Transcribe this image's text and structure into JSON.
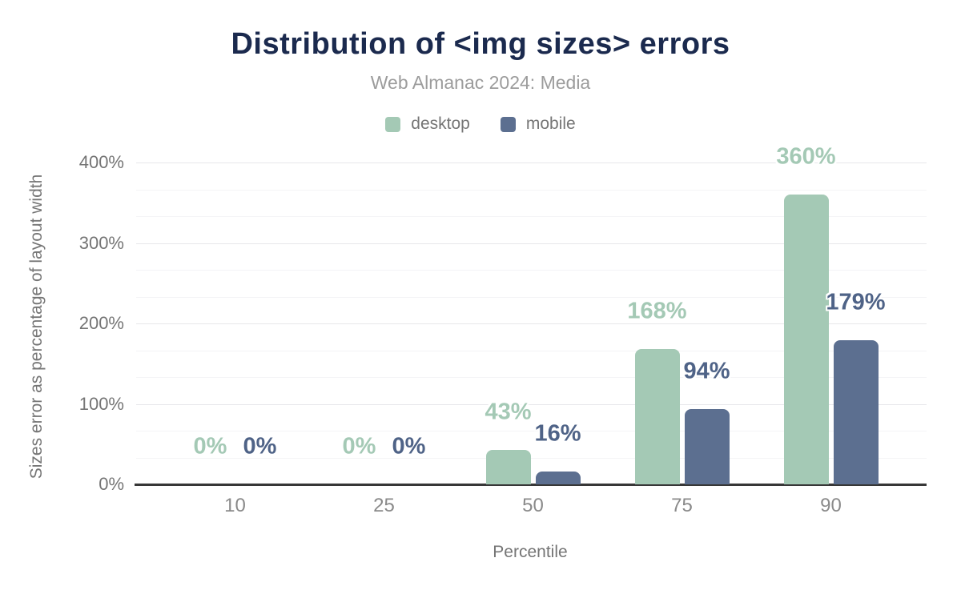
{
  "header": {
    "title": "Distribution of <img sizes> errors",
    "subtitle": "Web Almanac 2024: Media"
  },
  "legend": {
    "items": [
      {
        "label": "desktop",
        "color": "#a4c9b5"
      },
      {
        "label": "mobile",
        "color": "#5c6f90"
      }
    ]
  },
  "chart_data": {
    "type": "bar",
    "title": "Distribution of <img sizes> errors",
    "subtitle": "Web Almanac 2024: Media",
    "categories": [
      "10",
      "25",
      "50",
      "75",
      "90"
    ],
    "series": [
      {
        "name": "desktop",
        "color": "#a4c9b5",
        "label_color": "#a4c9b5",
        "values": [
          0,
          0,
          43,
          168,
          360
        ],
        "labels": [
          "0%",
          "0%",
          "43%",
          "168%",
          "360%"
        ]
      },
      {
        "name": "mobile",
        "color": "#5c6f90",
        "label_color": "#4f6387",
        "values": [
          0,
          0,
          16,
          94,
          179
        ],
        "labels": [
          "0%",
          "0%",
          "16%",
          "94%",
          "179%"
        ]
      }
    ],
    "xlabel": "Percentile",
    "ylabel": "Sizes error as percentage of layout width",
    "ylim": [
      0,
      400
    ],
    "yticks": [
      "0%",
      "100%",
      "200%",
      "300%",
      "400%"
    ],
    "ytick_values": [
      0,
      100,
      200,
      300,
      400
    ],
    "grid": "horizontal major lines at 100% with minor lines at thirds",
    "legend_position": "top center",
    "value_labels": "above bars with white halo"
  },
  "colors": {
    "title": "#1b2a4e",
    "subtitle": "#9c9c9c",
    "legend_text": "#757575",
    "axis_text": "#757575",
    "x_tick_text": "#8a8a8a",
    "grid_major": "#e7e7ea",
    "grid_minor": "#f4f4f6",
    "baseline": "#373737",
    "background": "#ffffff"
  }
}
